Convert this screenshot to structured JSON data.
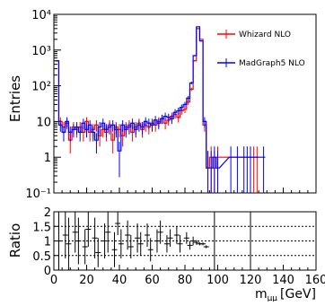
{
  "chart_data": [
    {
      "type": "line",
      "ylabel": "Entries",
      "yscale": "log",
      "xlim": [
        0,
        160
      ],
      "ylim": [
        0.1,
        10000
      ],
      "y_ticks": [
        "10⁻¹",
        "1",
        "10",
        "10²",
        "10³",
        "10⁴"
      ],
      "y_tick_values": [
        0.1,
        1,
        10,
        100,
        1000,
        10000
      ],
      "legend": {
        "placement": "top-right"
      },
      "series": [
        {
          "name": "Whizard NLO",
          "color": "#ff0000",
          "x": [
            2,
            4,
            6,
            8,
            10,
            12,
            14,
            16,
            18,
            20,
            22,
            24,
            26,
            28,
            30,
            32,
            34,
            36,
            38,
            40,
            42,
            44,
            46,
            48,
            50,
            52,
            54,
            56,
            58,
            60,
            62,
            64,
            66,
            68,
            70,
            72,
            74,
            76,
            78,
            80,
            82,
            84,
            86,
            88,
            90,
            92,
            94,
            96,
            98,
            100,
            120,
            122,
            124
          ],
          "values": [
            500,
            10,
            7,
            9,
            3,
            7,
            6,
            7,
            5,
            10,
            5,
            6,
            8,
            4,
            6,
            5,
            8,
            3,
            7,
            6,
            4,
            7,
            8,
            5,
            7,
            9,
            6,
            8,
            7,
            9,
            8,
            10,
            12,
            9,
            11,
            14,
            16,
            13,
            20,
            22,
            35,
            80,
            500,
            4000,
            2000,
            8,
            0.5,
            1,
            0.5,
            1,
            1,
            1,
            1
          ]
        },
        {
          "name": "MadGraph5 NLO",
          "color": "#0000ff",
          "x": [
            2,
            4,
            6,
            8,
            10,
            12,
            14,
            16,
            18,
            20,
            22,
            24,
            26,
            28,
            30,
            32,
            34,
            36,
            38,
            40,
            42,
            44,
            46,
            48,
            50,
            52,
            54,
            56,
            58,
            60,
            62,
            64,
            66,
            68,
            70,
            72,
            74,
            76,
            78,
            80,
            82,
            84,
            86,
            88,
            90,
            92,
            94,
            96,
            98,
            100,
            108,
            112,
            116,
            118,
            120,
            128
          ],
          "values": [
            500,
            8,
            5,
            10,
            5,
            6,
            7,
            5,
            9,
            6,
            8,
            5,
            3,
            7,
            9,
            6,
            7,
            8,
            6,
            1.5,
            8,
            6,
            7,
            9,
            6,
            8,
            7,
            10,
            9,
            8,
            11,
            9,
            12,
            14,
            13,
            12,
            18,
            20,
            25,
            30,
            45,
            120,
            700,
            4500,
            1800,
            10,
            0.5,
            0.5,
            1,
            0.5,
            1,
            1,
            1,
            1,
            1,
            1
          ]
        }
      ]
    },
    {
      "type": "scatter",
      "ylabel": "Ratio",
      "xlabel": "m_μμ [GeV]",
      "xlabel_main": "m",
      "xlabel_sub": "μμ",
      "xlabel_unit": "[GeV]",
      "xlim": [
        0,
        160
      ],
      "ylim": [
        0,
        2
      ],
      "x_ticks": [
        "0",
        "20",
        "40",
        "60",
        "80",
        "100",
        "120",
        "140",
        "160"
      ],
      "x_tick_values": [
        0,
        20,
        40,
        60,
        80,
        100,
        120,
        140,
        160
      ],
      "y_ticks": [
        "0",
        "0.5",
        "1",
        "1.5",
        "2"
      ],
      "y_tick_values": [
        0,
        0.5,
        1,
        1.5,
        2
      ],
      "reference_lines": [
        0.5,
        1,
        1.5
      ],
      "points": [
        {
          "x": 3,
          "y": 1.0,
          "err": 1.0
        },
        {
          "x": 7,
          "y": 1.2,
          "err": 0.8
        },
        {
          "x": 9,
          "y": 0.9,
          "err": 0.9
        },
        {
          "x": 13,
          "y": 1.3,
          "err": 0.7
        },
        {
          "x": 15,
          "y": 1.0,
          "err": 0.8
        },
        {
          "x": 19,
          "y": 0.8,
          "err": 0.6
        },
        {
          "x": 21,
          "y": 1.4,
          "err": 0.6
        },
        {
          "x": 25,
          "y": 1.1,
          "err": 0.7
        },
        {
          "x": 27,
          "y": 0.6,
          "err": 0.5
        },
        {
          "x": 31,
          "y": 1.0,
          "err": 0.6
        },
        {
          "x": 33,
          "y": 1.3,
          "err": 0.7
        },
        {
          "x": 37,
          "y": 0.7,
          "err": 0.6
        },
        {
          "x": 39,
          "y": 1.6,
          "err": 0.4
        },
        {
          "x": 41,
          "y": 0.9,
          "err": 0.5
        },
        {
          "x": 45,
          "y": 1.2,
          "err": 0.5
        },
        {
          "x": 47,
          "y": 0.8,
          "err": 0.4
        },
        {
          "x": 51,
          "y": 1.1,
          "err": 0.5
        },
        {
          "x": 53,
          "y": 0.9,
          "err": 0.4
        },
        {
          "x": 57,
          "y": 1.2,
          "err": 0.4
        },
        {
          "x": 59,
          "y": 0.7,
          "err": 0.4
        },
        {
          "x": 63,
          "y": 1.0,
          "err": 0.4
        },
        {
          "x": 65,
          "y": 1.3,
          "err": 0.4
        },
        {
          "x": 69,
          "y": 0.9,
          "err": 0.3
        },
        {
          "x": 71,
          "y": 1.1,
          "err": 0.3
        },
        {
          "x": 75,
          "y": 1.2,
          "err": 0.3
        },
        {
          "x": 77,
          "y": 0.9,
          "err": 0.3
        },
        {
          "x": 81,
          "y": 1.1,
          "err": 0.2
        },
        {
          "x": 83,
          "y": 0.85,
          "err": 0.15
        },
        {
          "x": 85,
          "y": 1.0,
          "err": 0.15
        },
        {
          "x": 87,
          "y": 0.95,
          "err": 0.08
        },
        {
          "x": 89,
          "y": 0.9,
          "err": 0.05
        },
        {
          "x": 91,
          "y": 0.9,
          "err": 0.05
        },
        {
          "x": 93,
          "y": 0.8,
          "err": 0.05
        }
      ],
      "vertical_lines": [
        98,
        120
      ]
    }
  ]
}
